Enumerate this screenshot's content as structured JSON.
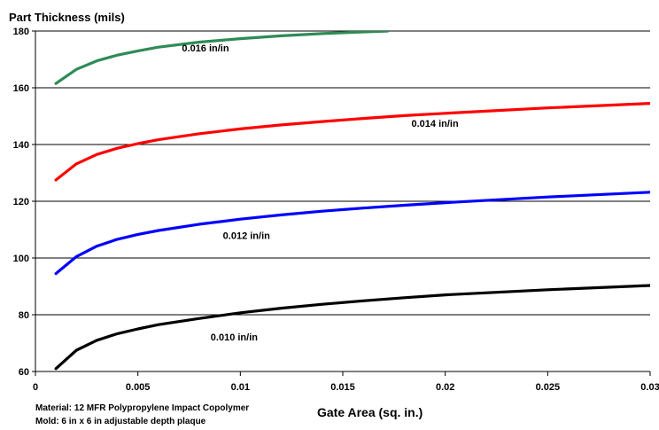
{
  "chart_data": {
    "type": "line",
    "title": "",
    "ylabel": "Part Thickness (mils)",
    "xlabel": "Gate Area (sq. in.)",
    "xlim": [
      0,
      0.03
    ],
    "ylim": [
      60,
      180
    ],
    "xticks": [
      0,
      0.005,
      0.01,
      0.015,
      0.02,
      0.025,
      0.03
    ],
    "xtick_labels": [
      "0",
      "0.005",
      "0.01",
      "0.015",
      "0.02",
      "0.025",
      "0.03"
    ],
    "yticks": [
      60,
      80,
      100,
      120,
      140,
      160,
      180
    ],
    "ytick_labels": [
      "60",
      "80",
      "100",
      "120",
      "140",
      "160",
      "180"
    ],
    "grid": "horizontal",
    "legend": "none",
    "series": [
      {
        "name": "0.016 in/in",
        "color": "#2e8b57",
        "x": [
          0.001,
          0.002,
          0.003,
          0.004,
          0.005,
          0.006,
          0.008,
          0.01,
          0.012,
          0.014,
          0.016,
          0.0172
        ],
        "y": [
          161.5,
          166.5,
          169.5,
          171.5,
          173,
          174.3,
          176.1,
          177.3,
          178.3,
          179.1,
          179.7,
          180
        ]
      },
      {
        "name": "0.014 in/in",
        "color": "#ff0000",
        "x": [
          0.001,
          0.002,
          0.003,
          0.004,
          0.005,
          0.006,
          0.008,
          0.01,
          0.012,
          0.014,
          0.016,
          0.018,
          0.02,
          0.025,
          0.03
        ],
        "y": [
          127.5,
          133.2,
          136.5,
          138.7,
          140.3,
          141.7,
          143.8,
          145.5,
          146.9,
          148.1,
          149.2,
          150.2,
          151.0,
          152.9,
          154.5
        ]
      },
      {
        "name": "0.012 in/in",
        "color": "#0000ff",
        "x": [
          0.001,
          0.002,
          0.003,
          0.004,
          0.005,
          0.006,
          0.008,
          0.01,
          0.012,
          0.014,
          0.016,
          0.018,
          0.02,
          0.025,
          0.03
        ],
        "y": [
          94.5,
          100.5,
          104.2,
          106.6,
          108.3,
          109.7,
          111.9,
          113.7,
          115.2,
          116.5,
          117.6,
          118.6,
          119.5,
          121.5,
          123.2
        ]
      },
      {
        "name": "0.010 in/in",
        "color": "#000000",
        "x": [
          0.001,
          0.002,
          0.003,
          0.004,
          0.005,
          0.006,
          0.008,
          0.01,
          0.012,
          0.014,
          0.016,
          0.018,
          0.02,
          0.025,
          0.03
        ],
        "y": [
          61,
          67.5,
          71.0,
          73.3,
          75.0,
          76.5,
          78.7,
          80.7,
          82.3,
          83.7,
          84.9,
          86.0,
          87.0,
          88.8,
          90.3
        ]
      }
    ],
    "annotations": [
      {
        "text": "0.016 in/in",
        "x": 0.0083,
        "y": 172.8
      },
      {
        "text": "0.014 in/in",
        "x": 0.0195,
        "y": 146.3
      },
      {
        "text": "0.012 in/in",
        "x": 0.0103,
        "y": 106.7
      },
      {
        "text": "0.010 in/in",
        "x": 0.0097,
        "y": 71.0
      }
    ]
  },
  "notes": {
    "material": "Material:  12 MFR Polypropylene Impact Copolymer",
    "mold": "Mold:  6 in x 6 in adjustable depth plaque"
  }
}
